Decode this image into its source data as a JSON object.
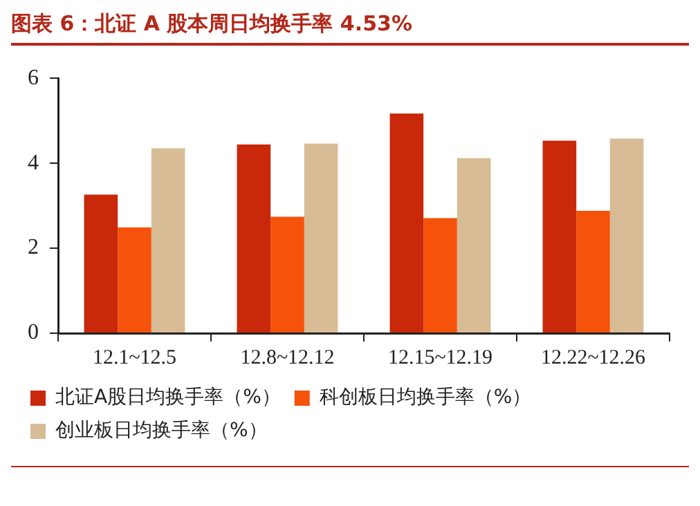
{
  "chart_data": {
    "type": "bar",
    "title": "图表 6：北证 A 股本周日均换手率 4.53%",
    "categories": [
      "12.1~12.5",
      "12.8~12.12",
      "12.15~12.19",
      "12.22~12.26"
    ],
    "series": [
      {
        "name": "北证A股日均换手率（%）",
        "color": "#c9280a",
        "values": [
          3.26,
          4.44,
          5.17,
          4.53
        ]
      },
      {
        "name": "科创板日均换手率（%）",
        "color": "#f5520c",
        "values": [
          2.49,
          2.74,
          2.71,
          2.88
        ]
      },
      {
        "name": "创业板日均换手率（%）",
        "color": "#d7bc95",
        "values": [
          4.35,
          4.46,
          4.12,
          4.58
        ]
      }
    ],
    "ylim": [
      0,
      6
    ],
    "yticks": [
      0,
      2,
      4,
      6
    ],
    "grid": false,
    "legend": "bottom"
  }
}
